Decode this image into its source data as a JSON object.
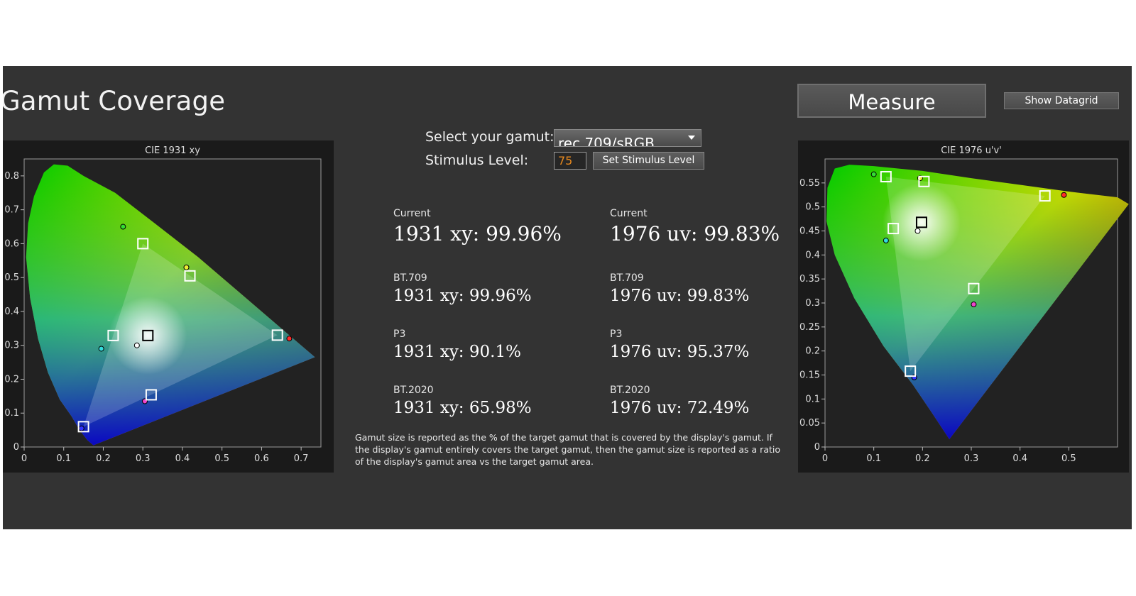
{
  "title": "Gamut Coverage",
  "buttons": {
    "measure": "Measure",
    "show_datagrid": "Show Datagrid",
    "set_stimulus": "Set Stimulus Level"
  },
  "controls": {
    "gamut_label": "Select your gamut:",
    "gamut_value": "rec 709/sRGB",
    "stimulus_label": "Stimulus Level:",
    "stimulus_value": "75"
  },
  "stats": [
    {
      "label": "Current",
      "xy": "1931 xy: 99.96%",
      "uv": "1976 uv: 99.83%"
    },
    {
      "label": "BT.709",
      "xy": "1931 xy: 99.96%",
      "uv": "1976 uv: 99.83%"
    },
    {
      "label": "P3",
      "xy": "1931 xy: 90.1%",
      "uv": "1976 uv: 95.37%"
    },
    {
      "label": "BT.2020",
      "xy": "1931 xy: 65.98%",
      "uv": "1976 uv: 72.49%"
    }
  ],
  "note": "Gamut size is reported as the % of the target gamut that is covered by the display's gamut. If the display's gamut entirely covers the target gamut, then the gamut size is reported as a ratio of the display's gamut area vs the target gamut area.",
  "colors": {
    "background": "#333333",
    "plot_bg": "#1a1a1a",
    "stimulus_text": "#e8891e"
  },
  "chart_data": [
    {
      "type": "scatter",
      "title": "CIE 1931 xy",
      "xlim": [
        0,
        0.75
      ],
      "ylim": [
        0,
        0.85
      ],
      "x_ticks": [
        "0",
        "0.1",
        "0.2",
        "0.3",
        "0.4",
        "0.5",
        "0.6",
        "0.7"
      ],
      "y_ticks": [
        "0",
        "0.1",
        "0.2",
        "0.3",
        "0.4",
        "0.5",
        "0.6",
        "0.7",
        "0.8"
      ],
      "target_squares": [
        {
          "name": "red",
          "x": 0.64,
          "y": 0.33
        },
        {
          "name": "green",
          "x": 0.3,
          "y": 0.6
        },
        {
          "name": "blue",
          "x": 0.15,
          "y": 0.06
        },
        {
          "name": "white",
          "x": 0.3127,
          "y": 0.329
        },
        {
          "name": "cyan",
          "x": 0.225,
          "y": 0.329
        },
        {
          "name": "magenta",
          "x": 0.321,
          "y": 0.154
        },
        {
          "name": "yellow",
          "x": 0.419,
          "y": 0.505
        }
      ],
      "measured_points": [
        {
          "name": "red",
          "x": 0.67,
          "y": 0.32,
          "color": "#ff2a2a"
        },
        {
          "name": "green",
          "x": 0.25,
          "y": 0.65,
          "color": "#33dd33"
        },
        {
          "name": "blue",
          "x": 0.145,
          "y": 0.055,
          "color": "#3333ff"
        },
        {
          "name": "white",
          "x": 0.285,
          "y": 0.3,
          "color": "#ffffff"
        },
        {
          "name": "cyan",
          "x": 0.195,
          "y": 0.29,
          "color": "#33dddd"
        },
        {
          "name": "magenta",
          "x": 0.305,
          "y": 0.135,
          "color": "#ee44cc"
        },
        {
          "name": "yellow",
          "x": 0.41,
          "y": 0.53,
          "color": "#eeee33"
        }
      ]
    },
    {
      "type": "scatter",
      "title": "CIE 1976 u'v'",
      "xlim": [
        0,
        0.6
      ],
      "ylim": [
        0,
        0.6
      ],
      "x_ticks": [
        "0",
        "0.1",
        "0.2",
        "0.3",
        "0.4",
        "0.5"
      ],
      "y_ticks": [
        "0",
        "0.05",
        "0.1",
        "0.15",
        "0.2",
        "0.25",
        "0.3",
        "0.35",
        "0.4",
        "0.45",
        "0.5",
        "0.55"
      ],
      "target_squares": [
        {
          "name": "red",
          "x": 0.451,
          "y": 0.523
        },
        {
          "name": "green",
          "x": 0.125,
          "y": 0.563
        },
        {
          "name": "blue",
          "x": 0.175,
          "y": 0.158
        },
        {
          "name": "white",
          "x": 0.198,
          "y": 0.468
        },
        {
          "name": "cyan",
          "x": 0.14,
          "y": 0.455
        },
        {
          "name": "magenta",
          "x": 0.305,
          "y": 0.33
        },
        {
          "name": "yellow",
          "x": 0.203,
          "y": 0.553
        }
      ],
      "measured_points": [
        {
          "name": "red",
          "x": 0.49,
          "y": 0.525,
          "color": "#ff2a2a"
        },
        {
          "name": "green",
          "x": 0.1,
          "y": 0.568,
          "color": "#33dd33"
        },
        {
          "name": "blue",
          "x": 0.183,
          "y": 0.145,
          "color": "#3333ff"
        },
        {
          "name": "white",
          "x": 0.19,
          "y": 0.45,
          "color": "#ffffff"
        },
        {
          "name": "cyan",
          "x": 0.125,
          "y": 0.43,
          "color": "#33dddd"
        },
        {
          "name": "magenta",
          "x": 0.305,
          "y": 0.297,
          "color": "#ee44cc"
        },
        {
          "name": "yellow",
          "x": 0.195,
          "y": 0.56,
          "color": "#eeee33"
        }
      ]
    }
  ]
}
